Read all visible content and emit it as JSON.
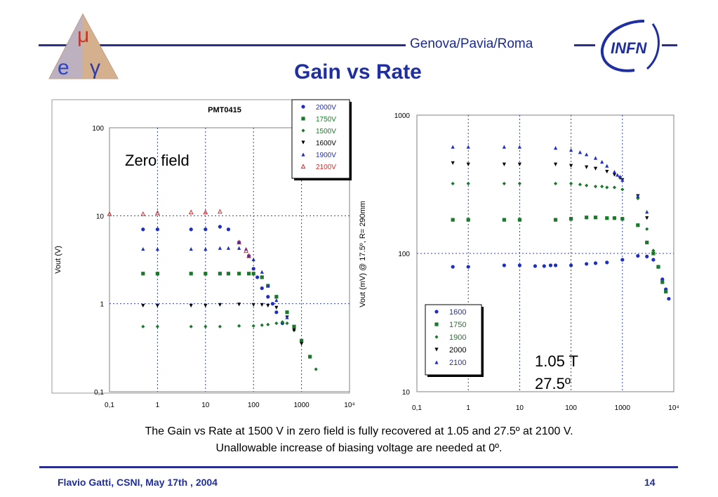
{
  "header": {
    "affiliation": "Genova/Pavia/Roma",
    "title": "Gain vs Rate",
    "logo_left_glyphs": [
      "μ",
      "e",
      "γ"
    ],
    "logo_right_text": "INFN"
  },
  "caption": {
    "line1": "The Gain vs Rate at 1500 V in zero field is fully recovered at 1.05 and 27.5º at  2100 V.",
    "line2": "Unallowable increase of biasing voltage are needed at 0º."
  },
  "footer": {
    "left": "Flavio Gatti, CSNI, May 17th , 2004",
    "right": "14"
  },
  "chart_data": [
    {
      "type": "scatter",
      "title": "PMT0415",
      "annotation": "Zero field",
      "xlabel": "",
      "ylabel": "Vout (V)",
      "x_log": true,
      "y_log": true,
      "xlim": [
        0.1,
        10000
      ],
      "ylim": [
        0.1,
        100
      ],
      "x_ticks": [
        "0,1",
        "1",
        "10",
        "100",
        "1000",
        "10⁴"
      ],
      "y_ticks": [
        "100",
        "10",
        "1",
        "0,1"
      ],
      "legend_position": "top-right",
      "series": [
        {
          "name": "2000V",
          "color": "#1f2fbf",
          "marker": "circle",
          "x": [
            0.5,
            1,
            5,
            10,
            20,
            30,
            50,
            80,
            100,
            120,
            150,
            200,
            250,
            300,
            400
          ],
          "y": [
            7,
            7,
            7,
            7,
            7.5,
            7,
            5,
            3.5,
            2.5,
            2,
            1.5,
            1.2,
            1,
            0.8,
            0.6
          ]
        },
        {
          "name": "1750V",
          "color": "#1a7a2a",
          "marker": "square",
          "x": [
            0.5,
            1,
            5,
            10,
            20,
            30,
            50,
            80,
            100,
            150,
            200,
            300,
            500,
            700,
            1000,
            1500
          ],
          "y": [
            2.2,
            2.2,
            2.2,
            2.2,
            2.2,
            2.2,
            2.2,
            2.2,
            2.2,
            2,
            1.6,
            1.2,
            0.8,
            0.55,
            0.38,
            0.25
          ]
        },
        {
          "name": "1500V",
          "color": "#1a7a2a",
          "marker": "diamond",
          "x": [
            0.5,
            1,
            5,
            10,
            20,
            50,
            100,
            150,
            200,
            300,
            400,
            500,
            700,
            1000,
            1500,
            2000
          ],
          "y": [
            0.55,
            0.55,
            0.55,
            0.55,
            0.55,
            0.56,
            0.56,
            0.57,
            0.58,
            0.6,
            0.62,
            0.6,
            0.5,
            0.37,
            0.25,
            0.18
          ]
        },
        {
          "name": "1600V",
          "color": "#000000",
          "marker": "triangle-down",
          "x": [
            0.5,
            1,
            5,
            10,
            20,
            50,
            100,
            150,
            200,
            300,
            500,
            700,
            1000
          ],
          "y": [
            0.95,
            0.95,
            0.95,
            0.95,
            0.97,
            0.98,
            0.97,
            0.97,
            0.95,
            0.9,
            0.7,
            0.5,
            0.35
          ]
        },
        {
          "name": "1900V",
          "color": "#1f2fbf",
          "marker": "triangle-up",
          "x": [
            0.5,
            1,
            5,
            10,
            20,
            30,
            50,
            70,
            100,
            150,
            200,
            300,
            500
          ],
          "y": [
            4.2,
            4.2,
            4.2,
            4.2,
            4.3,
            4.3,
            4.3,
            4.2,
            3.2,
            2.3,
            1.6,
            1.1,
            0.7
          ]
        },
        {
          "name": "2100V",
          "color": "#d03030",
          "marker": "triangle-open",
          "x": [
            0.1,
            0.5,
            1,
            5,
            10,
            20,
            50,
            70,
            80
          ],
          "y": [
            10.5,
            10.5,
            10.8,
            11,
            11,
            11.2,
            5,
            4,
            3.5
          ]
        }
      ]
    },
    {
      "type": "scatter",
      "title": "",
      "annotation_lines": [
        "1.05 T",
        "27.5º"
      ],
      "xlabel": "",
      "ylabel": "Vout (mV) @ 17.5º, R= 290mm",
      "x_log": true,
      "y_log": true,
      "xlim": [
        0.1,
        10000
      ],
      "ylim": [
        10,
        1000
      ],
      "x_ticks": [
        "0,1",
        "1",
        "10",
        "100",
        "1000",
        "10⁴"
      ],
      "y_ticks": [
        "1000",
        "100",
        "10"
      ],
      "legend_position": "bottom-left",
      "series": [
        {
          "name": "1600",
          "color": "#1f2fbf",
          "marker": "circle",
          "x": [
            0.5,
            1,
            5,
            10,
            20,
            30,
            40,
            50,
            100,
            200,
            300,
            500,
            1000,
            2000,
            3000,
            4000,
            5000,
            6000,
            7000,
            8000
          ],
          "y": [
            80,
            80,
            82,
            82,
            81,
            81,
            82,
            82,
            82,
            84,
            85,
            86,
            90,
            96,
            95,
            90,
            80,
            65,
            55,
            47
          ]
        },
        {
          "name": "1750",
          "color": "#1a7a2a",
          "marker": "square",
          "x": [
            0.5,
            1,
            5,
            10,
            50,
            100,
            200,
            300,
            500,
            700,
            1000,
            2000,
            3000,
            4000,
            5000,
            6000,
            7000
          ],
          "y": [
            175,
            175,
            175,
            175,
            175,
            178,
            182,
            182,
            180,
            180,
            178,
            160,
            120,
            100,
            80,
            62,
            53
          ]
        },
        {
          "name": "1900",
          "color": "#1a7a2a",
          "marker": "diamond",
          "x": [
            0.5,
            1,
            5,
            10,
            50,
            100,
            150,
            200,
            300,
            400,
            500,
            700,
            1000,
            2000,
            3000,
            4000,
            5000
          ],
          "y": [
            320,
            320,
            320,
            320,
            320,
            320,
            315,
            310,
            305,
            305,
            300,
            300,
            290,
            250,
            150,
            105,
            80
          ]
        },
        {
          "name": "2000",
          "color": "#000000",
          "marker": "triangle-down",
          "x": [
            0.5,
            1,
            5,
            10,
            50,
            100,
            200,
            300,
            500,
            700,
            900,
            1000,
            2000,
            3000
          ],
          "y": [
            450,
            440,
            440,
            440,
            440,
            430,
            420,
            410,
            390,
            370,
            350,
            340,
            260,
            180
          ]
        },
        {
          "name": "2100",
          "color": "#1f2fbf",
          "marker": "triangle-up",
          "x": [
            0.5,
            1,
            5,
            10,
            50,
            100,
            150,
            200,
            300,
            400,
            500,
            700,
            800,
            900,
            1000,
            2000,
            3000
          ],
          "y": [
            590,
            590,
            590,
            590,
            580,
            560,
            540,
            520,
            490,
            460,
            430,
            390,
            370,
            360,
            340,
            260,
            200
          ]
        }
      ]
    }
  ]
}
